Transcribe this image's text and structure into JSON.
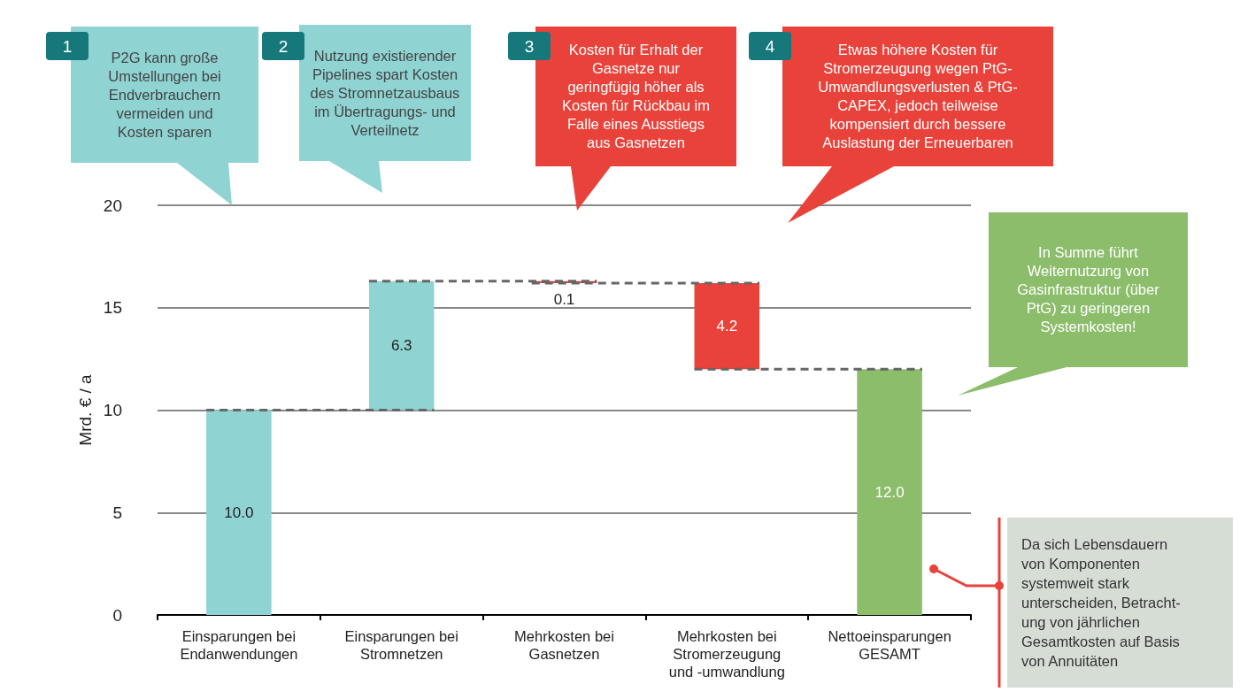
{
  "chart_data": {
    "type": "bar",
    "ylabel": "Mrd. € / a",
    "categories": [
      "Einsparungen bei\nEndanwendungen",
      "Einsparungen bei\nStromnetzen",
      "Mehrkosten bei\nGasnetzen",
      "Mehrkosten bei\nStromerzeugung\nund -umwandlung",
      "Nettoeinsparungen\nGESAMT"
    ],
    "values": [
      10.0,
      6.3,
      0.1,
      4.2,
      12.0
    ],
    "base": [
      0,
      10.0,
      16.2,
      12.0,
      0
    ],
    "colors": [
      "#8fd3d3",
      "#8fd3d3",
      "#e8423a",
      "#e8423a",
      "#8cbd6b"
    ],
    "value_labels": [
      "10.0",
      "6.3",
      "0.1",
      "4.2",
      "12.0"
    ],
    "ylim": [
      0,
      20
    ],
    "yticks": [
      0,
      5,
      10,
      15,
      20
    ],
    "grid": "y",
    "annotations": [
      "1",
      "P2G kann große\nUmstellungen  bei\nEndverbrauchern\nvermeiden und\nKosten sparen",
      "2",
      "Nutzung  existierender\nPipelines spart Kosten\ndes Stromnetzausbaus\nim Übertragungs-  und\nVerteilnetz",
      "3",
      "Kosten für Erhalt der\nGasnetze  nur\ngeringfügig höher als\nKosten für Rückbau im\nFalle eines Ausstiegs\naus Gasnetzen",
      "4",
      "Etwas höhere Kosten für\nStromerzeugung  wegen PtG-\nUmwandlungsverlusten  & PtG-\nCAPEX, jedoch teilweise\nkompensiert durch bessere\nAuslastung der Erneuerbaren",
      "In Summe führt\nWeiternutzung  von\nGasinfrastruktur  (über\nPtG) zu geringeren\nSystemkosten!",
      "Da sich Lebensdauern\nvon Komponenten\nsystemweit stark\nunterscheiden,  Betracht-\nung von jährlichen\nGesamtkosten auf Basis\nvon Annuitäten"
    ]
  }
}
